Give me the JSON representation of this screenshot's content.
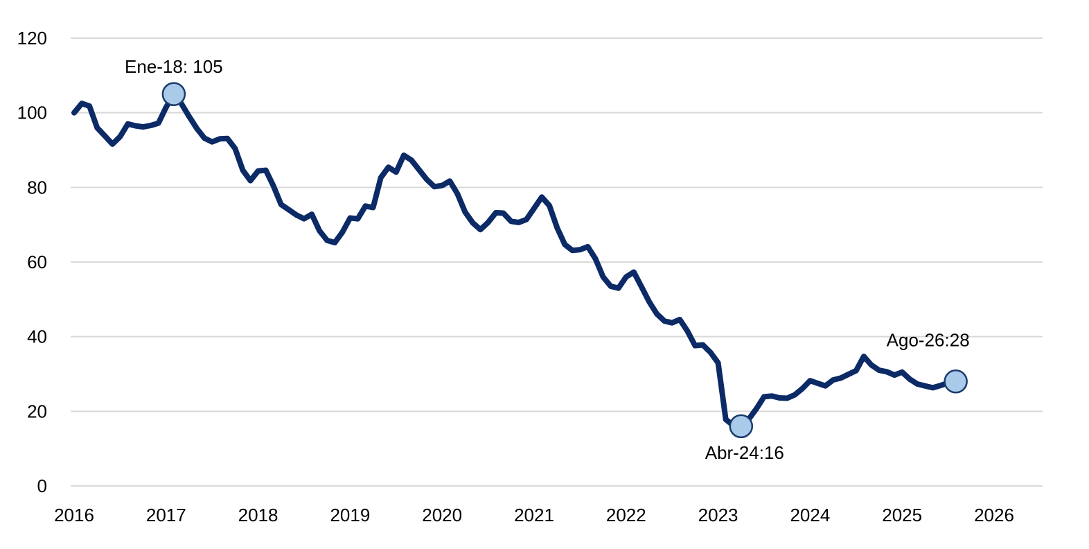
{
  "chart_data": {
    "type": "line",
    "title": "",
    "xlabel": "",
    "ylabel": "",
    "ylim": [
      0,
      120
    ],
    "yticks": [
      "0",
      "20",
      "40",
      "60",
      "80",
      "100",
      "120"
    ],
    "xticks": [
      "2016",
      "2017",
      "2018",
      "2019",
      "2020",
      "2021",
      "2022",
      "2023",
      "2024",
      "2025",
      "2026"
    ],
    "grid": "horizontal",
    "legend": "none",
    "series": [
      {
        "color": "#0b2a66",
        "points": [
          [
            "2016-01",
            100
          ],
          [
            "2016-02",
            102.5
          ],
          [
            "2016-03",
            101.8
          ],
          [
            "2016-04",
            96
          ],
          [
            "2016-05",
            93.8
          ],
          [
            "2016-06",
            91.6
          ],
          [
            "2016-07",
            93.6
          ],
          [
            "2016-08",
            97
          ],
          [
            "2016-09",
            96.5
          ],
          [
            "2016-10",
            96.2
          ],
          [
            "2016-11",
            96.6
          ],
          [
            "2016-12",
            97.2
          ],
          [
            "2017-01",
            101.5
          ],
          [
            "2017-02",
            105
          ],
          [
            "2017-03",
            102.4
          ],
          [
            "2017-04",
            99
          ],
          [
            "2017-05",
            95.8
          ],
          [
            "2017-06",
            93.2
          ],
          [
            "2017-07",
            92.2
          ],
          [
            "2017-08",
            93
          ],
          [
            "2017-09",
            93.1
          ],
          [
            "2017-10",
            90.4
          ],
          [
            "2017-11",
            84.6
          ],
          [
            "2017-12",
            81.8
          ],
          [
            "2018-01",
            84.4
          ],
          [
            "2018-02",
            84.6
          ],
          [
            "2018-03",
            80.4
          ],
          [
            "2018-04",
            75.4
          ],
          [
            "2018-05",
            74
          ],
          [
            "2018-06",
            72.6
          ],
          [
            "2018-07",
            71.6
          ],
          [
            "2018-08",
            72.8
          ],
          [
            "2018-09",
            68.4
          ],
          [
            "2018-10",
            65.8
          ],
          [
            "2018-11",
            65.2
          ],
          [
            "2018-12",
            68
          ],
          [
            "2019-01",
            71.8
          ],
          [
            "2019-02",
            71.6
          ],
          [
            "2019-03",
            75
          ],
          [
            "2019-04",
            74.6
          ],
          [
            "2019-05",
            82.6
          ],
          [
            "2019-06",
            85.4
          ],
          [
            "2019-07",
            84.1
          ],
          [
            "2019-08",
            88.6
          ],
          [
            "2019-09",
            87.3
          ],
          [
            "2019-10",
            84.7
          ],
          [
            "2019-11",
            82.1
          ],
          [
            "2019-12",
            80.2
          ],
          [
            "2020-01",
            80.5
          ],
          [
            "2020-02",
            81.7
          ],
          [
            "2020-03",
            78.3
          ],
          [
            "2020-04",
            73.4
          ],
          [
            "2020-05",
            70.5
          ],
          [
            "2020-06",
            68.7
          ],
          [
            "2020-07",
            70.6
          ],
          [
            "2020-08",
            73.2
          ],
          [
            "2020-09",
            73.1
          ],
          [
            "2020-10",
            70.9
          ],
          [
            "2020-11",
            70.6
          ],
          [
            "2020-12",
            71.4
          ],
          [
            "2021-01",
            74.4
          ],
          [
            "2021-02",
            77.4
          ],
          [
            "2021-03",
            75.1
          ],
          [
            "2021-04",
            69.2
          ],
          [
            "2021-05",
            64.7
          ],
          [
            "2021-06",
            63.1
          ],
          [
            "2021-07",
            63.3
          ],
          [
            "2021-08",
            64.1
          ],
          [
            "2021-09",
            60.9
          ],
          [
            "2021-10",
            56
          ],
          [
            "2021-11",
            53.5
          ],
          [
            "2021-12",
            53
          ],
          [
            "2022-01",
            56
          ],
          [
            "2022-02",
            57.3
          ],
          [
            "2022-03",
            53.4
          ],
          [
            "2022-04",
            49.4
          ],
          [
            "2022-05",
            46.1
          ],
          [
            "2022-06",
            44.2
          ],
          [
            "2022-07",
            43.7
          ],
          [
            "2022-08",
            44.6
          ],
          [
            "2022-09",
            41.5
          ],
          [
            "2022-10",
            37.6
          ],
          [
            "2022-11",
            37.8
          ],
          [
            "2022-12",
            35.8
          ],
          [
            "2023-01",
            33
          ],
          [
            "2023-02",
            17.8
          ],
          [
            "2023-03",
            16.2
          ],
          [
            "2023-04",
            16
          ],
          [
            "2023-05",
            17.9
          ],
          [
            "2023-06",
            20.7
          ],
          [
            "2023-07",
            23.9
          ],
          [
            "2023-08",
            24.1
          ],
          [
            "2023-09",
            23.6
          ],
          [
            "2023-10",
            23.5
          ],
          [
            "2023-11",
            24.4
          ],
          [
            "2023-12",
            26.1
          ],
          [
            "2024-01",
            28.2
          ],
          [
            "2024-02",
            27.5
          ],
          [
            "2024-03",
            26.8
          ],
          [
            "2024-04",
            28.4
          ],
          [
            "2024-05",
            28.9
          ],
          [
            "2024-06",
            29.9
          ],
          [
            "2024-07",
            30.9
          ],
          [
            "2024-08",
            34.7
          ],
          [
            "2024-09",
            32.4
          ],
          [
            "2024-10",
            31
          ],
          [
            "2024-11",
            30.6
          ],
          [
            "2024-12",
            29.7
          ],
          [
            "2025-01",
            30.5
          ],
          [
            "2025-02",
            28.6
          ],
          [
            "2025-03",
            27.3
          ],
          [
            "2025-04",
            26.8
          ],
          [
            "2025-05",
            26.3
          ],
          [
            "2025-06",
            26.9
          ],
          [
            "2025-07",
            27.6
          ],
          [
            "2025-08",
            28
          ]
        ]
      }
    ],
    "annotations": [
      {
        "label": "Ene-18: 105",
        "x": "2017-02",
        "y": 105,
        "position": "above"
      },
      {
        "label": "Abr-24:16",
        "x": "2023-04",
        "y": 16,
        "position": "below"
      },
      {
        "label": "Ago-26:28",
        "x": "2025-08",
        "y": 28,
        "position": "above-left"
      }
    ],
    "marker_fill": "#a9cbe9",
    "marker_stroke": "#1a3a6b"
  }
}
